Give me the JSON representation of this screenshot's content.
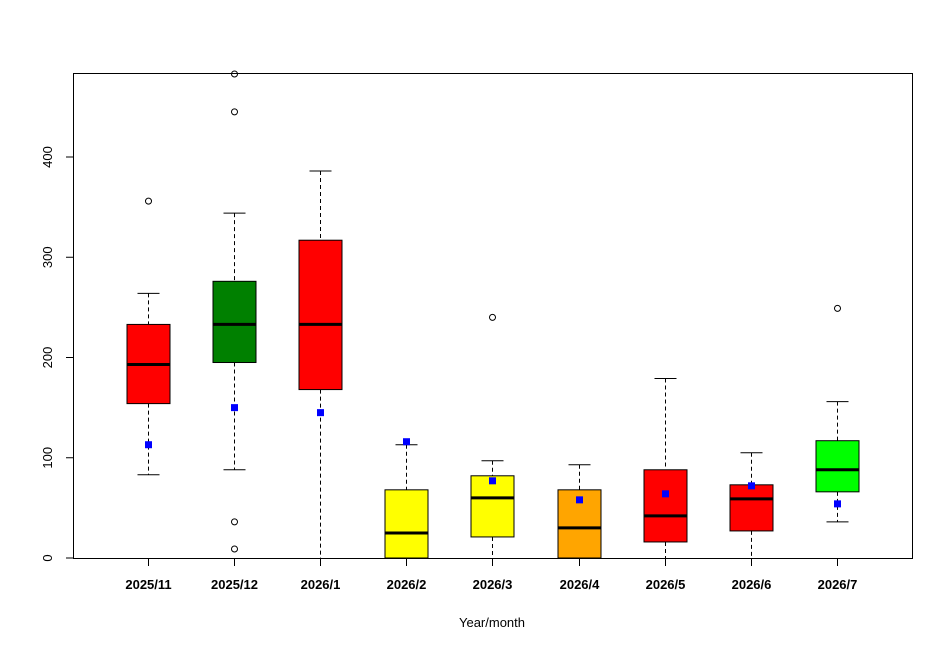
{
  "chart_data": {
    "type": "boxplot",
    "title": "",
    "xlabel": "Year/month",
    "ylabel": "",
    "ylim": [
      0,
      484
    ],
    "yticks": [
      0,
      100,
      200,
      300,
      400
    ],
    "grid": false,
    "categories": [
      "2025/11",
      "2025/12",
      "2026/1",
      "2026/2",
      "2026/3",
      "2026/4",
      "2026/5",
      "2026/6",
      "2026/7"
    ],
    "boxes": [
      {
        "label": "2025/11",
        "color": "#FF0000",
        "whisker_low": 83,
        "q1": 154,
        "median": 193,
        "q3": 233,
        "whisker_high": 264,
        "mean": 113,
        "outliers": [
          356
        ]
      },
      {
        "label": "2025/12",
        "color": "#008000",
        "whisker_low": 88,
        "q1": 195,
        "median": 233,
        "q3": 276,
        "whisker_high": 344,
        "mean": 150,
        "outliers": [
          484,
          445,
          36,
          9
        ]
      },
      {
        "label": "2026/1",
        "color": "#FF0000",
        "whisker_low": 0,
        "q1": 168,
        "median": 233,
        "q3": 317,
        "whisker_high": 386,
        "mean": 145,
        "outliers": []
      },
      {
        "label": "2026/2",
        "color": "#FFFF00",
        "whisker_low": 0,
        "q1": 0,
        "median": 25,
        "q3": 68,
        "whisker_high": 113,
        "mean": 116,
        "outliers": []
      },
      {
        "label": "2026/3",
        "color": "#FFFF00",
        "whisker_low": 0,
        "q1": 21,
        "median": 60,
        "q3": 82,
        "whisker_high": 97,
        "mean": 77,
        "outliers": [
          240
        ]
      },
      {
        "label": "2026/4",
        "color": "#FFA500",
        "whisker_low": 0,
        "q1": 0,
        "median": 30,
        "q3": 68,
        "whisker_high": 93,
        "mean": 58,
        "outliers": []
      },
      {
        "label": "2026/5",
        "color": "#FF0000",
        "whisker_low": 0,
        "q1": 16,
        "median": 42,
        "q3": 88,
        "whisker_high": 179,
        "mean": 64,
        "outliers": []
      },
      {
        "label": "2026/6",
        "color": "#FF0000",
        "whisker_low": 0,
        "q1": 27,
        "median": 59,
        "q3": 73,
        "whisker_high": 105,
        "mean": 72,
        "outliers": []
      },
      {
        "label": "2026/7",
        "color": "#00FF00",
        "whisker_low": 36,
        "q1": 66,
        "median": 88,
        "q3": 117,
        "whisker_high": 156,
        "mean": 54,
        "outliers": [
          249
        ]
      }
    ],
    "mean_marker_color": "#0000FF"
  }
}
